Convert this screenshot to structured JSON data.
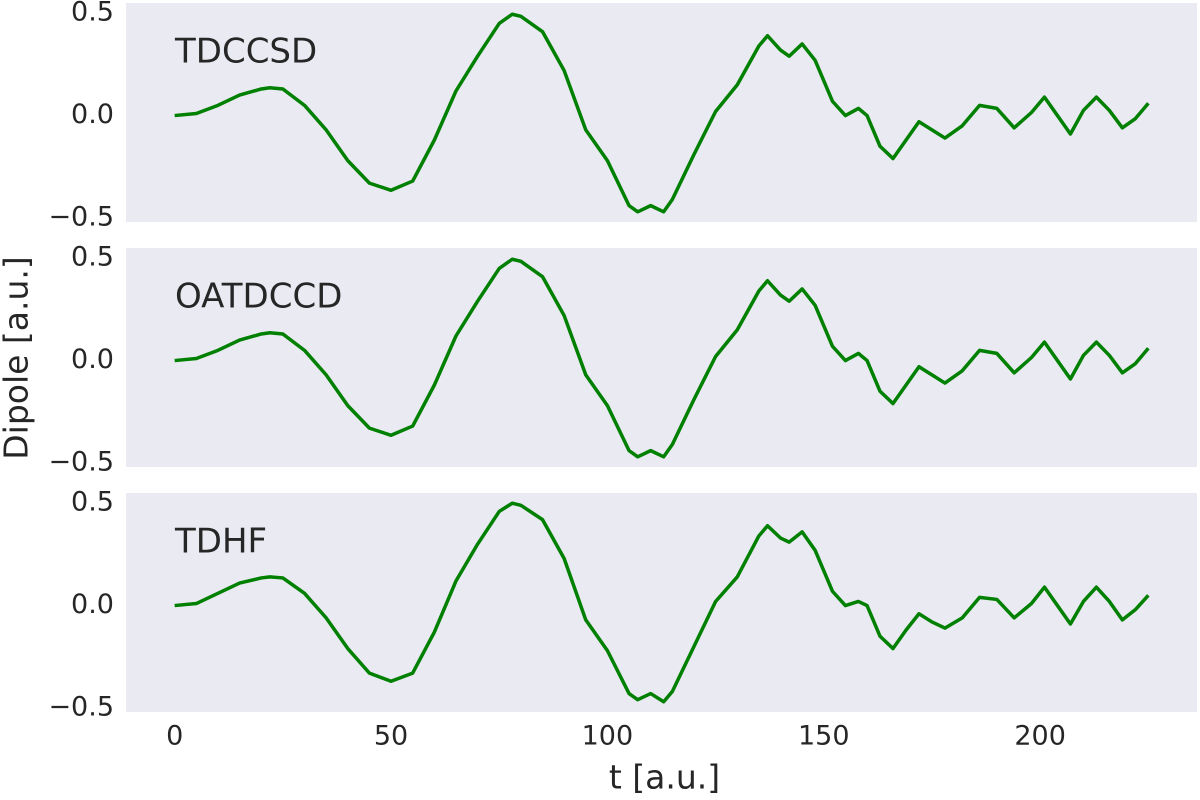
{
  "chart_data": [
    {
      "type": "line",
      "annotation": "TDCCSD",
      "color": "#008000",
      "grid": false,
      "x": [
        0,
        5,
        10,
        15,
        20,
        22,
        25,
        30,
        35,
        40,
        45,
        50,
        55,
        60,
        65,
        70,
        75,
        78,
        80,
        85,
        90,
        95,
        100,
        105,
        107,
        110,
        113,
        115,
        120,
        125,
        130,
        135,
        137,
        140,
        142,
        145,
        148,
        152,
        155,
        158,
        160,
        163,
        166,
        169,
        172,
        175,
        178,
        182,
        186,
        190,
        194,
        198,
        201,
        204,
        207,
        210,
        213,
        216,
        219,
        222,
        225
      ],
      "values": [
        0,
        0.01,
        0.05,
        0.1,
        0.13,
        0.136,
        0.13,
        0.05,
        -0.07,
        -0.22,
        -0.33,
        -0.365,
        -0.32,
        -0.12,
        0.12,
        0.29,
        0.45,
        0.495,
        0.485,
        0.41,
        0.22,
        -0.07,
        -0.22,
        -0.44,
        -0.47,
        -0.44,
        -0.47,
        -0.41,
        -0.19,
        0.02,
        0.15,
        0.34,
        0.39,
        0.32,
        0.29,
        0.35,
        0.27,
        0.07,
        0,
        0.035,
        0,
        -0.15,
        -0.21,
        -0.12,
        -0.03,
        -0.07,
        -0.11,
        -0.05,
        0.05,
        0.035,
        -0.06,
        0.015,
        0.09,
        0,
        -0.09,
        0.025,
        0.09,
        0.025,
        -0.06,
        -0.015,
        0.06
      ],
      "xlim": [
        -11.25,
        236.25
      ],
      "ylim": [
        -0.52,
        0.55
      ],
      "yticks": [
        {
          "value": -0.5,
          "label": "−0.5"
        },
        {
          "value": 0,
          "label": "0.0"
        },
        0.5
      ]
    },
    {
      "type": "line",
      "annotation": "OATDCCD",
      "color": "#008000",
      "grid": false,
      "ylabel": "Dipole [a.u.]",
      "x": [
        0,
        5,
        10,
        15,
        20,
        22,
        25,
        30,
        35,
        40,
        45,
        50,
        55,
        60,
        65,
        70,
        75,
        78,
        80,
        85,
        90,
        95,
        100,
        105,
        107,
        110,
        113,
        115,
        120,
        125,
        130,
        135,
        137,
        140,
        142,
        145,
        148,
        152,
        155,
        158,
        160,
        163,
        166,
        169,
        172,
        175,
        178,
        182,
        186,
        190,
        194,
        198,
        201,
        204,
        207,
        210,
        213,
        216,
        219,
        222,
        225
      ],
      "values": [
        0,
        0.01,
        0.05,
        0.1,
        0.13,
        0.136,
        0.13,
        0.05,
        -0.07,
        -0.22,
        -0.33,
        -0.365,
        -0.32,
        -0.12,
        0.12,
        0.29,
        0.45,
        0.495,
        0.485,
        0.41,
        0.22,
        -0.07,
        -0.22,
        -0.44,
        -0.47,
        -0.44,
        -0.47,
        -0.41,
        -0.19,
        0.02,
        0.15,
        0.34,
        0.39,
        0.32,
        0.29,
        0.35,
        0.27,
        0.07,
        0,
        0.035,
        0,
        -0.15,
        -0.21,
        -0.12,
        -0.03,
        -0.07,
        -0.11,
        -0.05,
        0.05,
        0.035,
        -0.06,
        0.015,
        0.09,
        0,
        -0.09,
        0.025,
        0.09,
        0.025,
        -0.06,
        -0.015,
        0.06
      ],
      "xlim": [
        -11.25,
        236.25
      ],
      "ylim": [
        -0.52,
        0.55
      ],
      "yticks": [
        {
          "value": -0.5,
          "label": "−0.5"
        },
        {
          "value": 0,
          "label": "0.0"
        },
        0.5
      ]
    },
    {
      "type": "line",
      "annotation": "TDHF",
      "color": "#008000",
      "grid": false,
      "xlabel": "t [a.u.]",
      "x": [
        0,
        5,
        10,
        15,
        20,
        22,
        25,
        30,
        35,
        40,
        45,
        50,
        55,
        60,
        65,
        70,
        75,
        78,
        80,
        85,
        90,
        95,
        100,
        105,
        107,
        110,
        113,
        115,
        120,
        125,
        130,
        135,
        137,
        140,
        142,
        145,
        148,
        152,
        155,
        158,
        160,
        163,
        166,
        169,
        172,
        175,
        178,
        182,
        186,
        190,
        194,
        198,
        201,
        204,
        207,
        210,
        213,
        216,
        219,
        222,
        225
      ],
      "values": [
        0,
        0.01,
        0.06,
        0.11,
        0.135,
        0.14,
        0.135,
        0.06,
        -0.06,
        -0.21,
        -0.33,
        -0.37,
        -0.33,
        -0.13,
        0.12,
        0.3,
        0.46,
        0.5,
        0.49,
        0.42,
        0.23,
        -0.07,
        -0.22,
        -0.43,
        -0.46,
        -0.43,
        -0.47,
        -0.42,
        -0.2,
        0.02,
        0.14,
        0.34,
        0.39,
        0.33,
        0.31,
        0.36,
        0.27,
        0.07,
        0,
        0.02,
        0,
        -0.15,
        -0.21,
        -0.12,
        -0.04,
        -0.08,
        -0.11,
        -0.06,
        0.04,
        0.03,
        -0.06,
        0.01,
        0.09,
        0,
        -0.09,
        0.02,
        0.09,
        0.02,
        -0.07,
        -0.02,
        0.05
      ],
      "xlim": [
        -11.25,
        236.25
      ],
      "ylim": [
        -0.52,
        0.55
      ],
      "yticks": [
        {
          "value": -0.5,
          "label": "−0.5"
        },
        {
          "value": 0,
          "label": "0.0"
        },
        0.5
      ],
      "xticks": [
        0,
        50,
        100,
        150,
        200
      ]
    }
  ]
}
